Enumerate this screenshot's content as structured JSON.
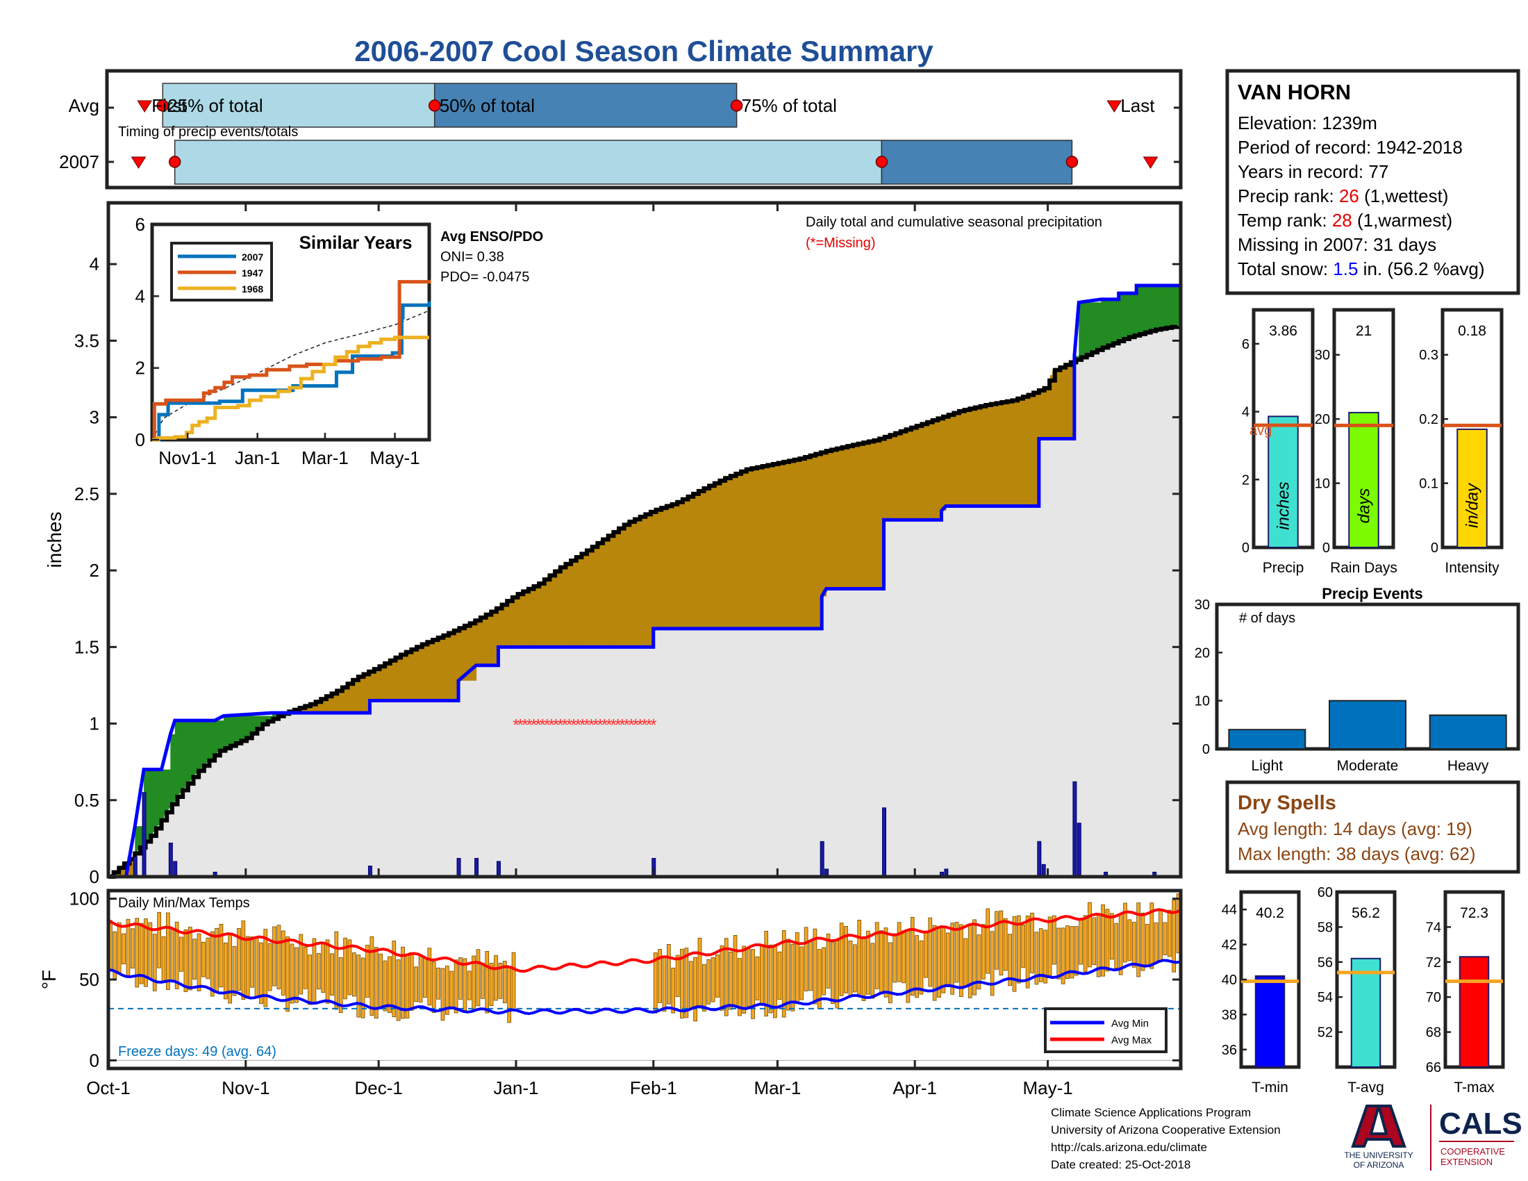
{
  "title": "2006-2007 Cool Season Climate Summary",
  "colors": {
    "title": "#1f4e96",
    "light_blue": "#add8e6",
    "steel_blue": "#4682b4",
    "surplus_green": "#228b22",
    "deficit_brown": "#b8860b",
    "avg_fill": "#e6e6e6",
    "obs_line": "#0000ff",
    "red": "#ff0000",
    "orange_avg": "#d95319",
    "bar_blue": "#0072bd",
    "dry_spell_brown": "#8b4513",
    "temp_bar": "#f5a623"
  },
  "timing": {
    "row_labels": [
      "Avg",
      "2007"
    ],
    "note": "Timing of precip events/totals",
    "avg_labels": {
      "first": "First",
      "p25": "25% of total",
      "p50": "50% of total",
      "p75": "75% of total",
      "last": "Last"
    },
    "avg_days": {
      "first": 12,
      "p25": 18,
      "p50": 108,
      "p75": 208,
      "last": 333
    },
    "y2007_days": {
      "first": 10,
      "p25": 22,
      "p50": 256,
      "p75": 319,
      "last": 345
    }
  },
  "station": {
    "name": "VAN HORN",
    "elevation_label": "Elevation: ",
    "elevation": "1239m",
    "period_label": "Period of record: ",
    "period": "1942-2018",
    "years_label": "Years in record: ",
    "years": "77",
    "precip_rank_label": "Precip rank: ",
    "precip_rank": "26",
    "precip_rank_note": " (1,wettest)",
    "temp_rank_label": "Temp rank: ",
    "temp_rank": "28",
    "temp_rank_note": " (1,warmest)",
    "missing_label": "Missing in 2007: ",
    "missing": "31 days",
    "snow_label": "Total snow: ",
    "snow": "1.5",
    "snow_note": " in. (56.2 %avg)"
  },
  "main_chart": {
    "ylabel": "inches",
    "legend_title": "Daily total and cumulative seasonal precipitation",
    "legend_missing": "(*=Missing)",
    "enso_title": "Avg ENSO/PDO",
    "oni": "ONI= 0.38",
    "pdo": "PDO= -0.0475",
    "x_ticks": [
      "Oct-1",
      "Nov-1",
      "Dec-1",
      "Jan-1",
      "Feb-1",
      "Mar-1",
      "Apr-1",
      "May-1"
    ],
    "y_ticks": [
      "0",
      "0.5",
      "1",
      "1.5",
      "2",
      "2.5",
      "3",
      "3.5",
      "4"
    ]
  },
  "chart_data": [
    {
      "id": "cumulative_precip",
      "type": "area",
      "title": "Daily total and cumulative seasonal precipitation",
      "ylabel": "inches",
      "xlim": [
        0,
        242
      ],
      "ylim": [
        0,
        4.4
      ],
      "x_ticks_day": [
        0,
        31,
        61,
        92,
        123,
        151,
        182,
        212
      ],
      "avg_cumulative": [
        [
          0,
          0
        ],
        [
          5,
          0.12
        ],
        [
          10,
          0.28
        ],
        [
          15,
          0.5
        ],
        [
          20,
          0.68
        ],
        [
          25,
          0.82
        ],
        [
          31,
          0.9
        ],
        [
          35,
          1.0
        ],
        [
          40,
          1.07
        ],
        [
          46,
          1.13
        ],
        [
          52,
          1.22
        ],
        [
          56,
          1.3
        ],
        [
          61,
          1.37
        ],
        [
          66,
          1.45
        ],
        [
          71,
          1.52
        ],
        [
          76,
          1.58
        ],
        [
          82,
          1.66
        ],
        [
          87,
          1.74
        ],
        [
          92,
          1.84
        ],
        [
          97,
          1.91
        ],
        [
          102,
          2.02
        ],
        [
          108,
          2.13
        ],
        [
          112,
          2.21
        ],
        [
          117,
          2.31
        ],
        [
          123,
          2.39
        ],
        [
          128,
          2.44
        ],
        [
          134,
          2.53
        ],
        [
          139,
          2.6
        ],
        [
          144,
          2.66
        ],
        [
          151,
          2.7
        ],
        [
          156,
          2.73
        ],
        [
          162,
          2.78
        ],
        [
          168,
          2.82
        ],
        [
          173,
          2.85
        ],
        [
          178,
          2.9
        ],
        [
          182,
          2.94
        ],
        [
          187,
          2.99
        ],
        [
          192,
          3.04
        ],
        [
          198,
          3.08
        ],
        [
          204,
          3.11
        ],
        [
          208,
          3.15
        ],
        [
          212,
          3.2
        ],
        [
          213,
          3.3
        ],
        [
          218,
          3.37
        ],
        [
          224,
          3.45
        ],
        [
          230,
          3.52
        ],
        [
          236,
          3.57
        ],
        [
          242,
          3.6
        ]
      ],
      "observed_cumulative": [
        [
          0,
          0
        ],
        [
          4,
          0
        ],
        [
          6,
          0.33
        ],
        [
          8,
          0.7
        ],
        [
          12,
          0.7
        ],
        [
          14,
          0.93
        ],
        [
          15,
          1.02
        ],
        [
          24,
          1.02
        ],
        [
          26,
          1.05
        ],
        [
          37,
          1.07
        ],
        [
          59,
          1.07
        ],
        [
          59,
          1.15
        ],
        [
          79,
          1.15
        ],
        [
          79,
          1.28
        ],
        [
          83,
          1.38
        ],
        [
          88,
          1.38
        ],
        [
          88,
          1.5
        ],
        [
          123,
          1.5
        ],
        [
          123,
          1.62
        ],
        [
          161,
          1.62
        ],
        [
          161,
          1.83
        ],
        [
          162,
          1.88
        ],
        [
          175,
          1.88
        ],
        [
          175,
          2.33
        ],
        [
          188,
          2.33
        ],
        [
          188,
          2.39
        ],
        [
          189,
          2.42
        ],
        [
          210,
          2.42
        ],
        [
          210,
          2.86
        ],
        [
          218,
          2.86
        ],
        [
          218,
          3.4
        ],
        [
          219,
          3.75
        ],
        [
          224,
          3.77
        ],
        [
          228,
          3.77
        ],
        [
          228,
          3.81
        ],
        [
          232,
          3.81
        ],
        [
          232,
          3.86
        ],
        [
          242,
          3.86
        ]
      ],
      "daily_precip": [
        [
          6,
          0.13
        ],
        [
          8,
          0.55
        ],
        [
          14,
          0.22
        ],
        [
          15,
          0.1
        ],
        [
          24,
          0.03
        ],
        [
          59,
          0.07
        ],
        [
          79,
          0.12
        ],
        [
          83,
          0.12
        ],
        [
          88,
          0.1
        ],
        [
          123,
          0.12
        ],
        [
          161,
          0.23
        ],
        [
          162,
          0.05
        ],
        [
          175,
          0.45
        ],
        [
          188,
          0.03
        ],
        [
          189,
          0.05
        ],
        [
          210,
          0.23
        ],
        [
          211,
          0.08
        ],
        [
          218,
          0.62
        ],
        [
          219,
          0.35
        ],
        [
          225,
          0.03
        ],
        [
          236,
          0.03
        ]
      ],
      "missing": {
        "start_day": 92,
        "end_day": 123,
        "value": 1.0
      }
    },
    {
      "id": "similar_years",
      "type": "line",
      "title": "Similar Years",
      "xlim": [
        0,
        242
      ],
      "ylim": [
        0,
        6
      ],
      "x_ticks": [
        "Nov1-1",
        "Jan-1",
        "Mar-1",
        "May-1"
      ],
      "x_ticks_day": [
        31,
        92,
        151,
        212
      ],
      "y_ticks": [
        "0",
        "2",
        "4",
        "6"
      ],
      "series": [
        {
          "name": "2007",
          "color": "#0072bd",
          "points": [
            [
              0,
              0
            ],
            [
              6,
              0.7
            ],
            [
              14,
              1.02
            ],
            [
              59,
              1.07
            ],
            [
              79,
              1.38
            ],
            [
              123,
              1.5
            ],
            [
              161,
              1.88
            ],
            [
              175,
              2.33
            ],
            [
              210,
              2.42
            ],
            [
              218,
              3.4
            ],
            [
              219,
              3.75
            ],
            [
              242,
              3.86
            ]
          ]
        },
        {
          "name": "1947",
          "color": "#d95319",
          "points": [
            [
              0,
              0
            ],
            [
              2,
              1.0
            ],
            [
              12,
              1.1
            ],
            [
              45,
              1.3
            ],
            [
              50,
              1.35
            ],
            [
              55,
              1.45
            ],
            [
              63,
              1.6
            ],
            [
              70,
              1.75
            ],
            [
              85,
              1.8
            ],
            [
              100,
              1.95
            ],
            [
              120,
              2.05
            ],
            [
              135,
              2.1
            ],
            [
              160,
              2.2
            ],
            [
              180,
              2.25
            ],
            [
              200,
              2.3
            ],
            [
              214,
              2.3
            ],
            [
              216,
              4.4
            ],
            [
              242,
              4.45
            ]
          ]
        },
        {
          "name": "1968",
          "color": "#edb120",
          "points": [
            [
              0,
              0
            ],
            [
              5,
              0.05
            ],
            [
              20,
              0.08
            ],
            [
              30,
              0.2
            ],
            [
              35,
              0.4
            ],
            [
              41,
              0.5
            ],
            [
              48,
              0.6
            ],
            [
              55,
              0.9
            ],
            [
              75,
              0.95
            ],
            [
              85,
              1.1
            ],
            [
              95,
              1.2
            ],
            [
              110,
              1.35
            ],
            [
              120,
              1.45
            ],
            [
              130,
              1.7
            ],
            [
              140,
              1.9
            ],
            [
              150,
              2.1
            ],
            [
              160,
              2.3
            ],
            [
              170,
              2.45
            ],
            [
              180,
              2.6
            ],
            [
              190,
              2.7
            ],
            [
              200,
              2.8
            ],
            [
              212,
              2.85
            ],
            [
              242,
              2.85
            ]
          ]
        }
      ],
      "avg_series": {
        "name": "avg",
        "points": [
          [
            0,
            0
          ],
          [
            10,
            0.6
          ],
          [
            31,
            1.0
          ],
          [
            61,
            1.4
          ],
          [
            92,
            1.85
          ],
          [
            123,
            2.35
          ],
          [
            151,
            2.7
          ],
          [
            182,
            2.95
          ],
          [
            212,
            3.2
          ],
          [
            242,
            3.6
          ]
        ]
      }
    },
    {
      "id": "season_totals",
      "type": "bar",
      "panels": [
        {
          "label": "Precip",
          "unit": "inches",
          "value": 3.86,
          "value_label": "3.86",
          "avg": 3.6,
          "avg_label": "avg",
          "ylim": [
            0,
            7
          ],
          "y_ticks": [
            0,
            2,
            4,
            6
          ],
          "color": "#40e0d0"
        },
        {
          "label": "Rain Days",
          "unit": "days",
          "value": 21,
          "value_label": "21",
          "avg": 19,
          "ylim": [
            0,
            37
          ],
          "y_ticks": [
            0,
            10,
            20,
            30
          ],
          "color": "#7cfc00"
        },
        {
          "label": "Intensity",
          "unit": "in/day",
          "value": 0.184,
          "value_label": "0.18",
          "avg": 0.19,
          "ylim": [
            0,
            0.37
          ],
          "y_ticks": [
            0,
            0.1,
            0.2,
            0.3
          ],
          "color": "#ffd700"
        }
      ]
    },
    {
      "id": "precip_events",
      "type": "bar",
      "title": "Precip Events",
      "ylabel": "# of days",
      "categories": [
        "Light",
        "Moderate",
        "Heavy"
      ],
      "values": [
        4,
        10,
        7
      ],
      "ylim": [
        0,
        30
      ],
      "y_ticks": [
        0,
        10,
        20,
        30
      ]
    },
    {
      "id": "daily_temps",
      "type": "bar",
      "title": "Daily Min/Max Temps",
      "ylabel": "°F",
      "xlim": [
        0,
        242
      ],
      "ylim": [
        -5,
        105
      ],
      "y_ticks": [
        0,
        50,
        100
      ],
      "freeze_line": 32,
      "missing_days": [
        92,
        123
      ],
      "avg_min": [
        [
          0,
          55
        ],
        [
          31,
          40
        ],
        [
          61,
          33
        ],
        [
          92,
          30
        ],
        [
          123,
          31
        ],
        [
          151,
          34
        ],
        [
          182,
          43
        ],
        [
          212,
          52
        ],
        [
          242,
          62
        ]
      ],
      "avg_max": [
        [
          0,
          85
        ],
        [
          31,
          76
        ],
        [
          61,
          68
        ],
        [
          92,
          56
        ],
        [
          123,
          62
        ],
        [
          151,
          72
        ],
        [
          182,
          80
        ],
        [
          212,
          87
        ],
        [
          242,
          93
        ]
      ],
      "legend": [
        "Avg Min",
        "Avg Max"
      ],
      "freeze_text": "Freeze days: 49 (avg. 64)"
    },
    {
      "id": "seasonal_temps",
      "type": "bar",
      "panels": [
        {
          "label": "T-min",
          "value": 40.2,
          "value_label": "40.2",
          "avg": 39.9,
          "ylim": [
            35,
            45
          ],
          "y_ticks": [
            36,
            38,
            40,
            42,
            44
          ],
          "color": "#0000ff"
        },
        {
          "label": "T-avg",
          "value": 56.2,
          "value_label": "56.2",
          "avg": 55.4,
          "ylim": [
            50,
            60
          ],
          "y_ticks": [
            52,
            54,
            56,
            58,
            60
          ],
          "color": "#40e0d0"
        },
        {
          "label": "T-max",
          "value": 72.3,
          "value_label": "72.3",
          "avg": 70.9,
          "ylim": [
            66,
            76
          ],
          "y_ticks": [
            66,
            68,
            70,
            72,
            74
          ],
          "color": "#ff0000"
        }
      ]
    }
  ],
  "dry_spells": {
    "title": "Dry Spells",
    "avg_length": "Avg length: 14 days (avg: 19)",
    "max_length": "Max length: 38 days (avg: 62)"
  },
  "footer": {
    "line1": "Climate Science Applications Program",
    "line2": "University of Arizona Cooperative Extension",
    "line3": "http://cals.arizona.edu/climate",
    "line4": " Date created: 25-Oct-2018",
    "ua_logo_text1": "THE UNIVERSITY",
    "ua_logo_text2": "OF ARIZONA",
    "cals_logo": "CALS",
    "cals_sub1": "COOPERATIVE",
    "cals_sub2": "EXTENSION"
  }
}
